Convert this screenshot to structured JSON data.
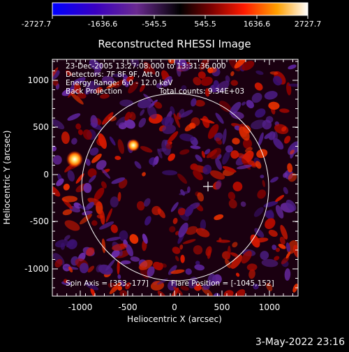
{
  "colorbar": {
    "tick_labels": [
      "-2727.7",
      "-1636.6",
      "-545.5",
      "545.5",
      "1636.6",
      "2727.7"
    ],
    "gradient_stops": [
      "#0000ff",
      "#3a00b8",
      "#5a1a7a",
      "#000000",
      "#7a0000",
      "#ff2000",
      "#ff9a00",
      "#ffffff"
    ]
  },
  "title": "Reconstructed RHESSI Image",
  "info": {
    "line1": "23-Dec-2005 13:27:08.000 to 13:31:36.000",
    "line2": "Detectors: 7F 8F 9F, Att 0",
    "line3a": "Energy Range: 6.0 - 12.0 keV",
    "line4a": "Back Projection",
    "line4b": "Total counts: 9.34E+03"
  },
  "footer_info": {
    "spin_axis": "Spin Axis = [353,-177]",
    "flare_position": "Flare Position = [-1045,152]"
  },
  "axes": {
    "xlabel": "Heliocentric X (arcsec)",
    "ylabel": "Heliocentric Y (arcsec)",
    "x_ticks": [
      "-1000",
      "-500",
      "0",
      "500",
      "1000"
    ],
    "y_ticks": [
      "1000",
      "500",
      "0",
      "-500",
      "-1000"
    ],
    "x_range": [
      -1270,
      1290
    ],
    "y_range": [
      -1230,
      1270
    ]
  },
  "solar_disk": {
    "center": [
      0,
      0
    ],
    "radius_arcsec": 970
  },
  "spin_axis_marker": {
    "x": 353,
    "y": -177
  },
  "timestamp": "3-May-2022 23:16",
  "colors": {
    "background": "#000000",
    "foreground": "#ffffff",
    "positive": "#e02000",
    "negative": "#5a1aa0"
  }
}
